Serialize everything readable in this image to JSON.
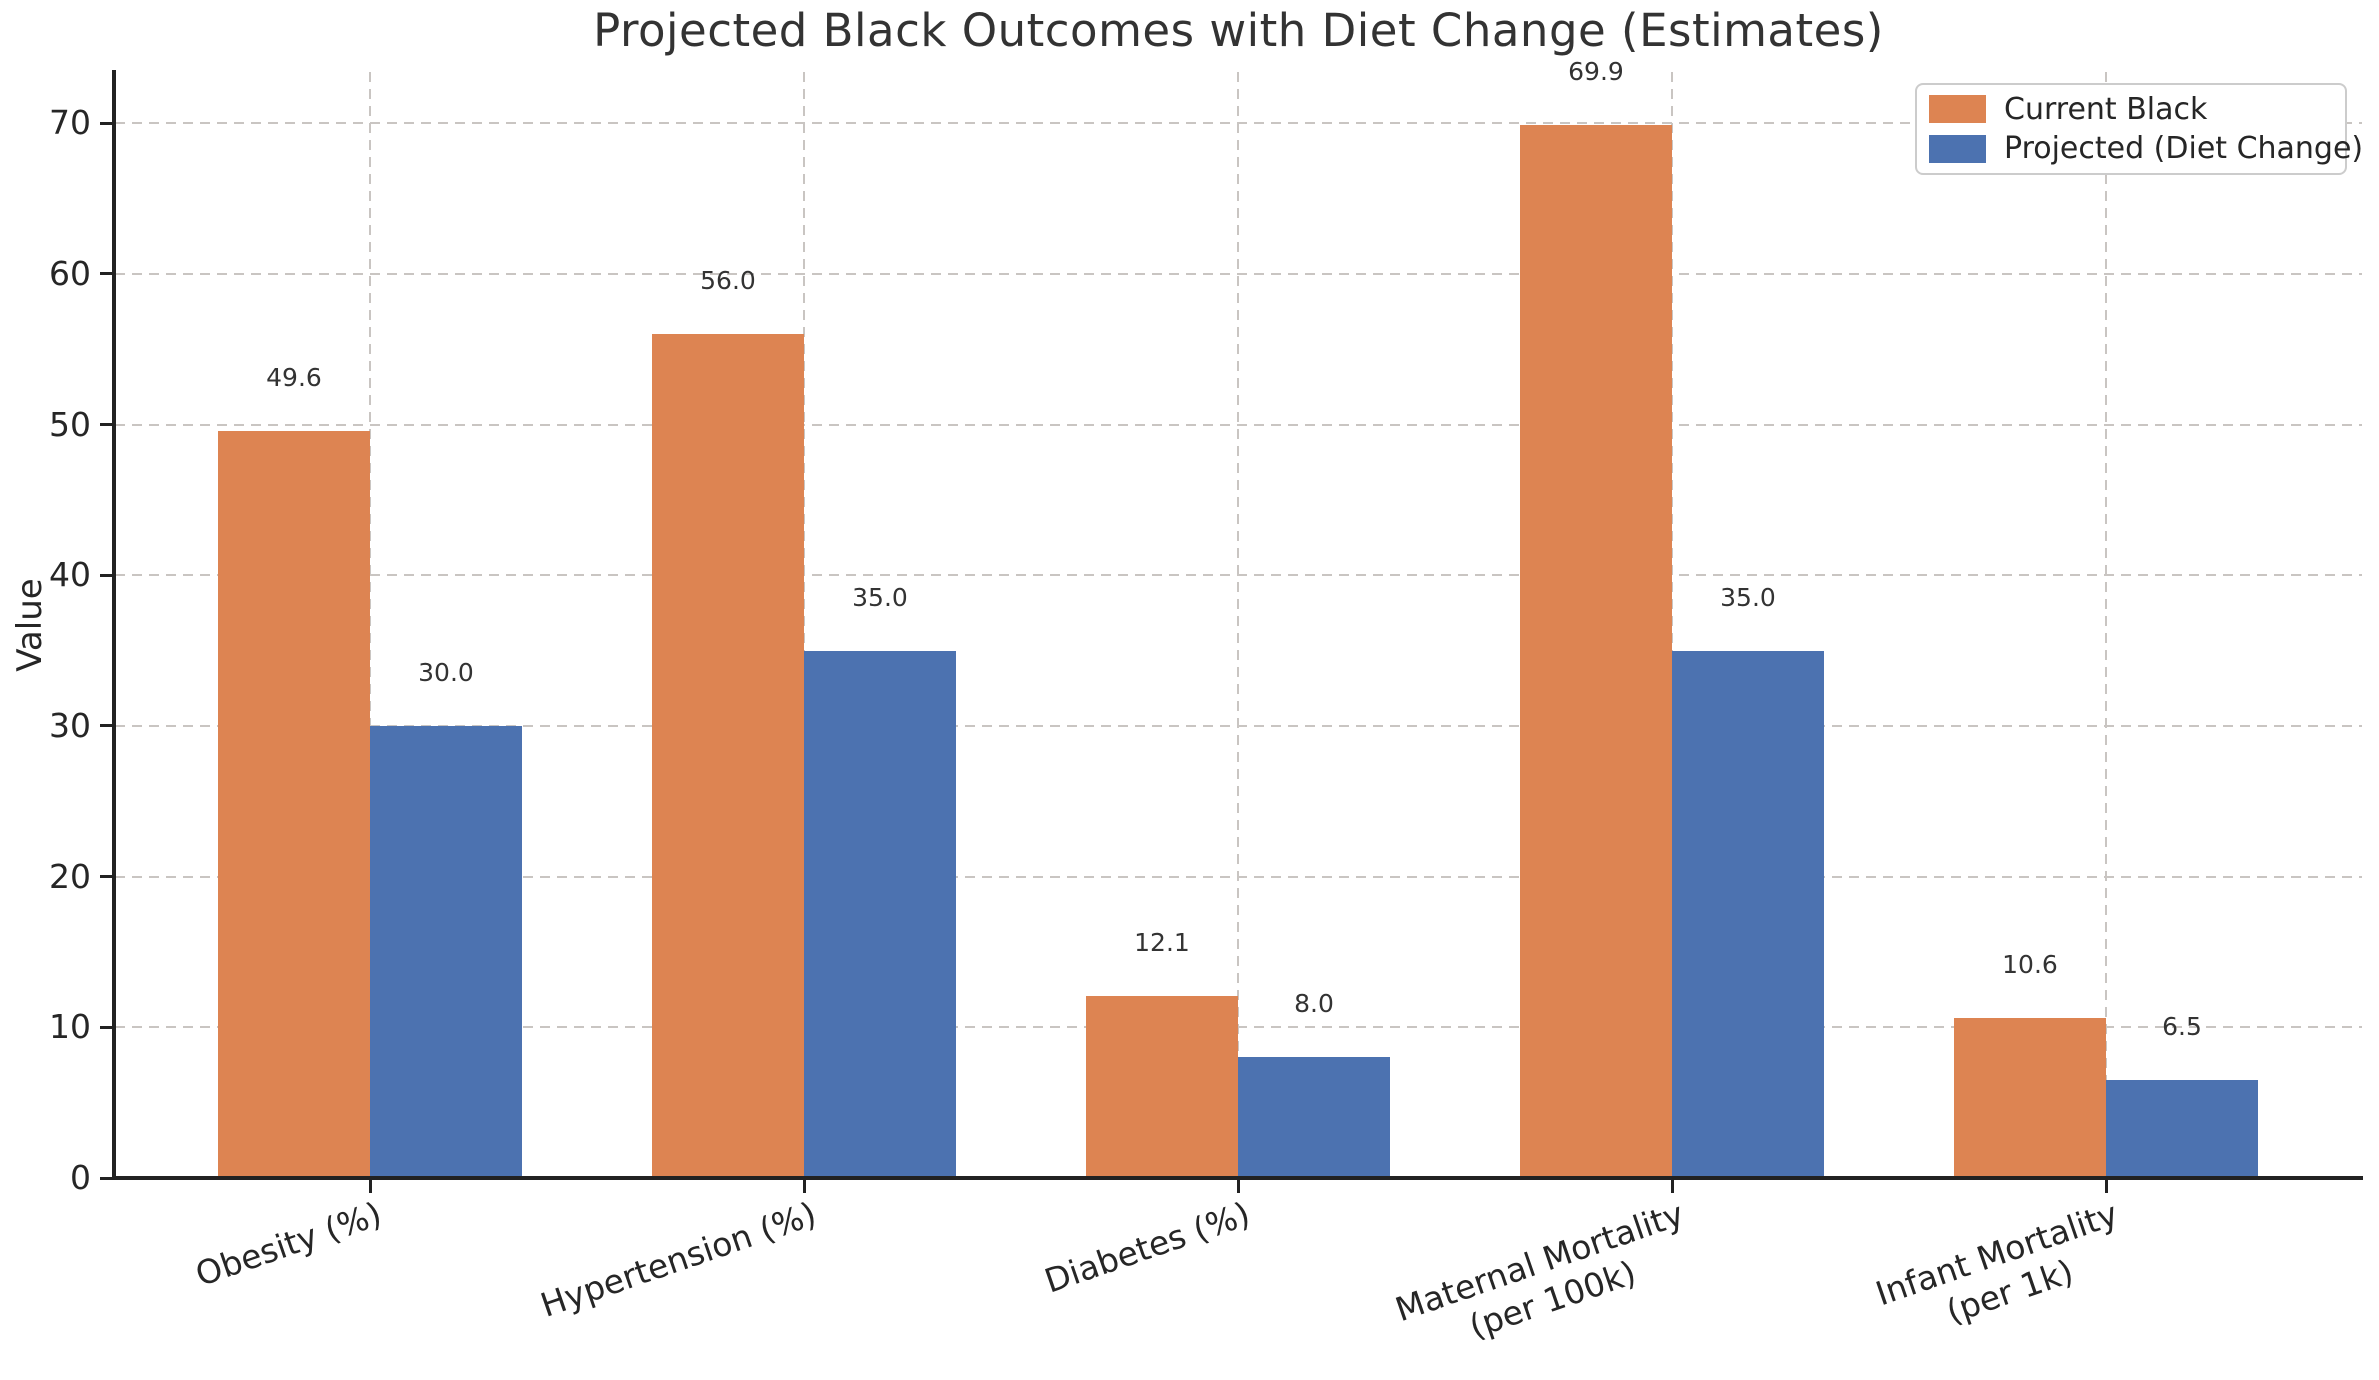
{
  "chart_data": {
    "type": "bar",
    "title": "Projected Black Outcomes with Diet Change (Estimates)",
    "ylabel": "Value",
    "categories": [
      {
        "lines": [
          "Obesity (%)"
        ]
      },
      {
        "lines": [
          "Hypertension (%)"
        ]
      },
      {
        "lines": [
          "Diabetes (%)"
        ]
      },
      {
        "lines": [
          "Maternal Mortality",
          "(per 100k)"
        ]
      },
      {
        "lines": [
          "Infant Mortality",
          "(per 1k)"
        ]
      }
    ],
    "series": [
      {
        "name": "Current Black",
        "color": "#DD8452",
        "values": [
          49.6,
          56.0,
          12.1,
          69.9,
          10.6
        ]
      },
      {
        "name": "Projected (Diet Change)",
        "color": "#4C72B0",
        "values": [
          30.0,
          35.0,
          8.0,
          35.0,
          6.5
        ]
      }
    ],
    "bar_value_labels": [
      [
        "49.6",
        "56.0",
        "12.1",
        "69.9",
        "10.6"
      ],
      [
        "30.0",
        "35.0",
        "8.0",
        "35.0",
        "6.5"
      ]
    ],
    "y_ticks": [
      0,
      10,
      20,
      30,
      40,
      50,
      60,
      70
    ],
    "ylim": [
      0,
      73.4
    ],
    "grid_style": "dashed",
    "grid_on": true,
    "legend_position": "upper right",
    "colors": {
      "grid": "#c9c5c2",
      "axis": "#222222",
      "text": "#333333"
    }
  }
}
